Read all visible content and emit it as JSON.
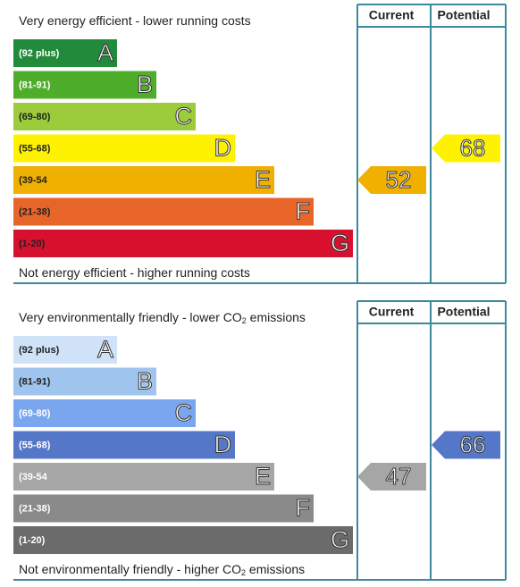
{
  "panels": [
    {
      "top_label": [
        "Very energy efficient - lower running costs"
      ],
      "bottom_label": [
        "Not energy efficient - higher running costs"
      ],
      "headers": [
        "Current",
        "Potential"
      ],
      "bands": [
        {
          "range": "(92 plus)",
          "letter": "A",
          "color": "#218a3b",
          "text_color": "#ffffff"
        },
        {
          "range": "(81-91)",
          "letter": "B",
          "color": "#4fad2c",
          "text_color": "#ffffff"
        },
        {
          "range": "(69-80)",
          "letter": "C",
          "color": "#9ccc3c",
          "text_color": "#222222"
        },
        {
          "range": "(55-68)",
          "letter": "D",
          "color": "#fff200",
          "text_color": "#222222"
        },
        {
          "range": "(39-54",
          "letter": "E",
          "color": "#f0b000",
          "text_color": "#222222"
        },
        {
          "range": "(21-38)",
          "letter": "F",
          "color": "#e8652a",
          "text_color": "#222222"
        },
        {
          "range": "(1-20)",
          "letter": "G",
          "color": "#d7102e",
          "text_color": "#222222"
        }
      ],
      "current": {
        "value": 52,
        "color": "#f0b000"
      },
      "potential": {
        "value": 68,
        "color": "#fff200"
      }
    },
    {
      "top_label": [
        "Very environmentally friendly - lower CO",
        "2",
        " emissions"
      ],
      "bottom_label": [
        "Not environmentally friendly - higher CO",
        "2",
        " emissions"
      ],
      "headers": [
        "Current",
        "Potential"
      ],
      "bands": [
        {
          "range": "(92 plus)",
          "letter": "A",
          "color": "#cfe2f7",
          "text_color": "#222222"
        },
        {
          "range": "(81-91)",
          "letter": "B",
          "color": "#9fc4ee",
          "text_color": "#222222"
        },
        {
          "range": "(69-80)",
          "letter": "C",
          "color": "#7aa6f0",
          "text_color": "#ffffff"
        },
        {
          "range": "(55-68)",
          "letter": "D",
          "color": "#5577c8",
          "text_color": "#ffffff"
        },
        {
          "range": "(39-54",
          "letter": "E",
          "color": "#a6a6a6",
          "text_color": "#ffffff"
        },
        {
          "range": "(21-38)",
          "letter": "F",
          "color": "#8a8a8a",
          "text_color": "#ffffff"
        },
        {
          "range": "(1-20)",
          "letter": "G",
          "color": "#6b6b6b",
          "text_color": "#ffffff"
        }
      ],
      "current": {
        "value": 47,
        "color": "#a6a6a6"
      },
      "potential": {
        "value": 66,
        "color": "#5577c8"
      }
    }
  ]
}
